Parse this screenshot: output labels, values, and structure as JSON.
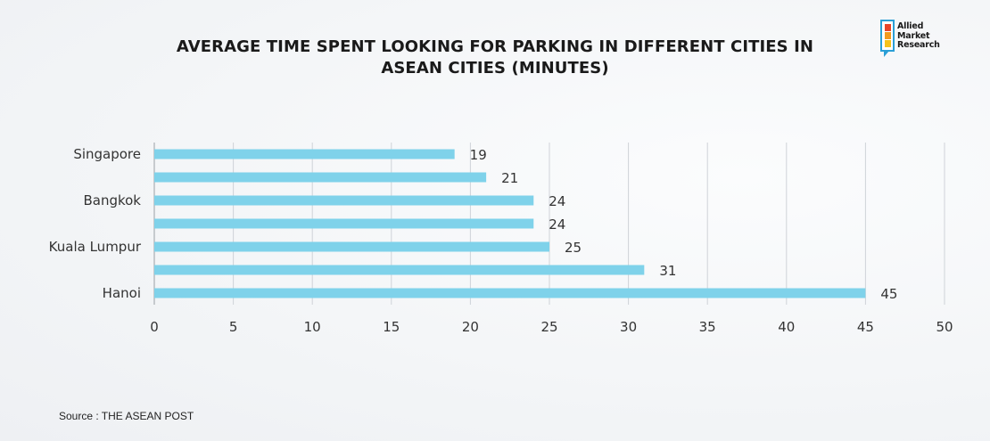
{
  "logo": {
    "line1": "Allied",
    "line2": "Market",
    "line3": "Research"
  },
  "source": "Source : THE ASEAN POST",
  "colors": {
    "bar": "#7fd2ea",
    "grid": "#cfd3d8",
    "axis": "#9aa0a6"
  },
  "chart_data": {
    "type": "bar",
    "orientation": "horizontal",
    "title_lines": [
      "AVERAGE TIME SPENT LOOKING FOR PARKING IN DIFFERENT CITIES IN",
      "ASEAN CITIES (MINUTES)"
    ],
    "categories": [
      "Singapore",
      "",
      "Bangkok",
      "",
      "Kuala Lumpur",
      "",
      "Hanoi"
    ],
    "values": [
      19,
      21,
      24,
      24,
      25,
      31,
      45
    ],
    "xlim": [
      0,
      50
    ],
    "xticks": [
      0,
      5,
      10,
      15,
      20,
      25,
      30,
      35,
      40,
      45,
      50
    ],
    "grid": "vertical",
    "data_labels": true
  }
}
